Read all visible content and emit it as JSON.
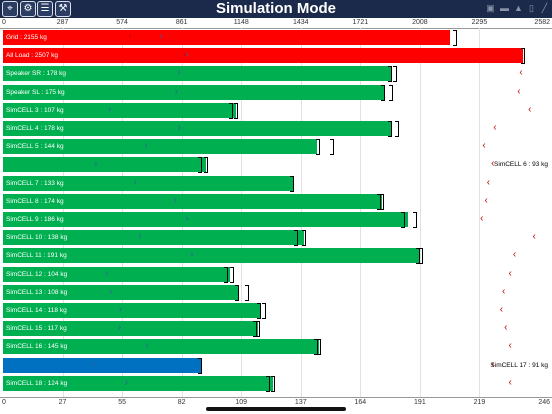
{
  "header": {
    "title": "Simulation Mode",
    "buttons": [
      {
        "name": "target-icon-button",
        "glyph": "⌖"
      },
      {
        "name": "gear-icon-button",
        "glyph": "⚙"
      },
      {
        "name": "list-icon-button",
        "glyph": "☰"
      },
      {
        "name": "wrench-icon-button",
        "glyph": "⚒"
      }
    ],
    "status_icons": [
      {
        "name": "lock-icon",
        "glyph": "▣"
      },
      {
        "name": "chat-icon",
        "glyph": "▬"
      },
      {
        "name": "bell-icon",
        "glyph": "▲"
      },
      {
        "name": "phone-icon",
        "glyph": "▯"
      },
      {
        "name": "signal-icon",
        "glyph": "╱"
      }
    ]
  },
  "colors": {
    "red": "#ff0000",
    "green": "#00b050",
    "blue": "#0070c0",
    "marker": "#c00000",
    "grid": "#e2e2e2"
  },
  "chart_data": {
    "type": "bar",
    "orientation": "horizontal",
    "top_axis": {
      "ticks": [
        "0",
        "287",
        "574",
        "861",
        "1148",
        "1434",
        "1721",
        "2008",
        "2295",
        "2582"
      ],
      "range": [
        0,
        2582
      ]
    },
    "bottom_axis": {
      "ticks": [
        "0",
        "27",
        "55",
        "82",
        "109",
        "137",
        "164",
        "191",
        "219",
        "246"
      ],
      "range": [
        0,
        246
      ]
    },
    "rows": [
      {
        "label": "Grid : 2155 kg",
        "axis": "top",
        "value": 2155,
        "color": "red",
        "limit": 2180,
        "marker": 605
      },
      {
        "label": "All Load : 2507 kg",
        "axis": "top",
        "value": 2507,
        "color": "red",
        "limit": 2510,
        "marker": 870
      },
      {
        "label": "Speaker SR : 178 kg",
        "axis": "bottom",
        "value": 178,
        "color": "green",
        "limit": 178,
        "max": 180,
        "marker": 237
      },
      {
        "label": "Speaker SL : 175 kg",
        "axis": "bottom",
        "value": 175,
        "color": "green",
        "limit": 175,
        "max": 178,
        "marker": 236
      },
      {
        "label": "SimCELL 3 : 107 kg",
        "axis": "bottom",
        "value": 107,
        "color": "green",
        "limit": 105,
        "max": 107,
        "marker": 241
      },
      {
        "label": "SimCELL 4 : 178 kg",
        "axis": "bottom",
        "value": 178,
        "color": "green",
        "limit": 178,
        "max": 181,
        "marker": 225
      },
      {
        "label": "SimCELL 5 : 144 kg",
        "axis": "bottom",
        "value": 144,
        "color": "green",
        "limit": 145,
        "max": 151,
        "marker": 220
      },
      {
        "label": "",
        "axis": "bottom",
        "value": 93,
        "color": "green",
        "limit": 91,
        "max": 93,
        "marker": 224,
        "side_label": "SimCELL 6 : 93 kg"
      },
      {
        "label": "SimCELL 7 : 133 kg",
        "axis": "bottom",
        "value": 133,
        "color": "green",
        "limit": 133,
        "max": 133,
        "marker": 222
      },
      {
        "label": "SimCELL 8 : 174 kg",
        "axis": "bottom",
        "value": 174,
        "color": "green",
        "limit": 173,
        "max": 174,
        "marker": 221
      },
      {
        "label": "SimCELL 9 : 186 kg",
        "axis": "bottom",
        "value": 186,
        "color": "green",
        "limit": 184,
        "max": 189,
        "marker": 219
      },
      {
        "label": "SimCELL 10 : 138 kg",
        "axis": "bottom",
        "value": 138,
        "color": "green",
        "limit": 135,
        "max": 138,
        "marker": 243
      },
      {
        "label": "SimCELL 11 : 191 kg",
        "axis": "bottom",
        "value": 191,
        "color": "green",
        "limit": 191,
        "max": 192,
        "marker": 234
      },
      {
        "label": "SimCELL 12 : 104 kg",
        "axis": "bottom",
        "value": 104,
        "color": "green",
        "limit": 103,
        "max": 105,
        "marker": 232
      },
      {
        "label": "SimCELL 13 : 108 kg",
        "axis": "bottom",
        "value": 108,
        "color": "green",
        "limit": 108,
        "max": 112,
        "marker": 229
      },
      {
        "label": "SimCELL 14 : 118 kg",
        "axis": "bottom",
        "value": 118,
        "color": "green",
        "limit": 118,
        "max": 120,
        "marker": 228
      },
      {
        "label": "SimCELL 15 : 117 kg",
        "axis": "bottom",
        "value": 117,
        "color": "green",
        "limit": 116,
        "max": 117,
        "marker": 230
      },
      {
        "label": "SimCELL 16 : 145 kg",
        "axis": "bottom",
        "value": 145,
        "color": "green",
        "limit": 144,
        "max": 145,
        "marker": 232
      },
      {
        "label": "",
        "axis": "bottom",
        "value": 91,
        "color": "blue",
        "limit": 91,
        "max": 91,
        "marker": 224,
        "side_label": "SimCELL 17 : 91 kg"
      },
      {
        "label": "SimCELL 18 : 124 kg",
        "axis": "bottom",
        "value": 124,
        "color": "green",
        "limit": 122,
        "max": 124,
        "marker": 232
      }
    ]
  }
}
